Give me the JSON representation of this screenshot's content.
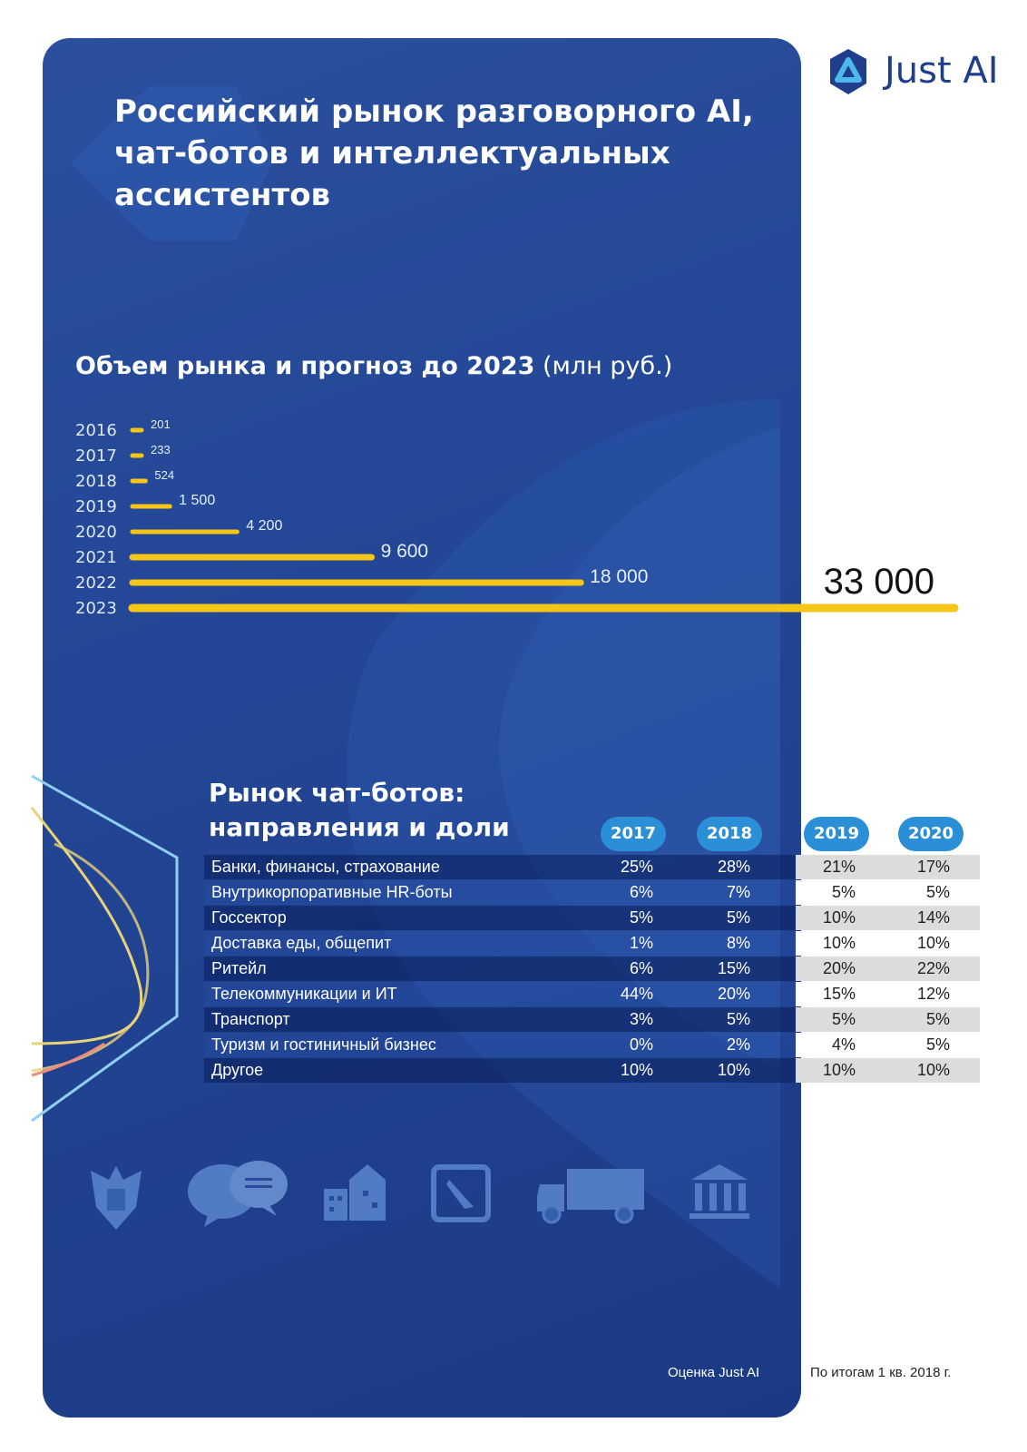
{
  "brand": {
    "name": "Just AI"
  },
  "title": "Российский рынок разговорного AI, чат-ботов и интеллектуальных ассистентов",
  "market_chart": {
    "title_bold": "Объем рынка и прогноз до 2023",
    "title_unit": "(млн руб.)"
  },
  "chart_data": [
    {
      "type": "bar",
      "orientation": "horizontal",
      "title": "Объем рынка и прогноз до 2023 (млн руб.)",
      "categories": [
        "2016",
        "2017",
        "2018",
        "2019",
        "2020",
        "2021",
        "2022",
        "2023"
      ],
      "values": [
        201,
        233,
        524,
        1500,
        4200,
        9600,
        18000,
        33000
      ],
      "value_labels": [
        "201",
        "233",
        "524",
        "1 500",
        "4 200",
        "9 600",
        "18 000",
        "33 000"
      ],
      "xlim": [
        0,
        33000
      ],
      "grid": false,
      "bar_color": "#f5c518"
    },
    {
      "type": "table",
      "title": "Рынок чат-ботов: направления и доли",
      "columns": [
        "2017",
        "2018",
        "2019",
        "2020"
      ],
      "rows": [
        {
          "label": "Банки, финансы, страхование",
          "values": [
            "25%",
            "28%",
            "21%",
            "17%"
          ]
        },
        {
          "label": "Внутрикорпоративные HR-боты",
          "values": [
            "6%",
            "7%",
            "5%",
            "5%"
          ]
        },
        {
          "label": "Госсектор",
          "values": [
            "5%",
            "5%",
            "10%",
            "14%"
          ]
        },
        {
          "label": "Доставка еды, общепит",
          "values": [
            "1%",
            "8%",
            "10%",
            "10%"
          ]
        },
        {
          "label": "Ритейл",
          "values": [
            "6%",
            "15%",
            "20%",
            "22%"
          ]
        },
        {
          "label": "Телекоммуникации и ИТ",
          "values": [
            "44%",
            "20%",
            "15%",
            "12%"
          ]
        },
        {
          "label": "Транспорт",
          "values": [
            "3%",
            "5%",
            "5%",
            "5%"
          ]
        },
        {
          "label": "Туризм и гостиничный бизнес",
          "values": [
            "0%",
            "2%",
            "4%",
            "5%"
          ]
        },
        {
          "label": "Другое",
          "values": [
            "10%",
            "10%",
            "10%",
            "10%"
          ]
        }
      ]
    }
  ],
  "table_title_line1": "Рынок чат-ботов:",
  "table_title_line2": "направления и доли",
  "icons": [
    "russian-emblem-icon",
    "chat-bubbles-icon",
    "buildings-icon",
    "compass-icon",
    "truck-icon",
    "bank-icon"
  ],
  "notes": {
    "left": "Оценка Just AI",
    "right": "По итогам 1 кв. 2018 г."
  },
  "colors": {
    "panel": "#234796",
    "accent_bar": "#f5c518",
    "year_pill": "#2a8fd6",
    "brand_blue": "#1f3f8c"
  }
}
